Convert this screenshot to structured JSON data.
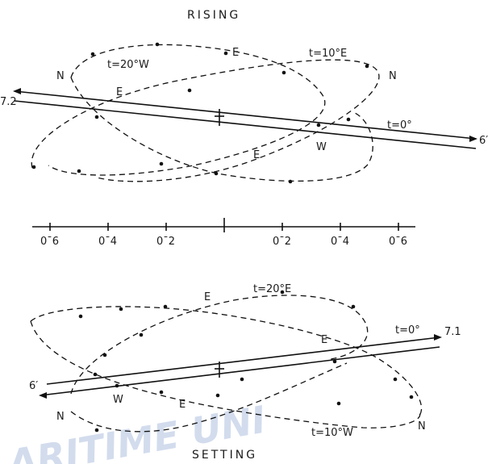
{
  "rising": {
    "title": "RISING",
    "start_label": "7.2",
    "end_label": "6′",
    "labels": {
      "t20w": "t=20°W",
      "t10e": "t=10°E",
      "t0": "t=0°",
      "n_left": "N",
      "n_right": "N",
      "e_top": "E",
      "e_left": "E",
      "e_bottom": "E",
      "w": "W"
    }
  },
  "scale": {
    "ticks": [
      "0ˉ6",
      "0ˉ4",
      "0ˉ2",
      "0ˉ2",
      "0ˉ4",
      "0ˉ6"
    ]
  },
  "setting": {
    "title": "SETTING",
    "start_label": "6′",
    "end_label": "7.1",
    "labels": {
      "t20e": "t=20°E",
      "t0": "t=0°",
      "t10w": "t=10°W",
      "n_left": "N",
      "n_right": "N",
      "e_top": "E",
      "e_right": "E",
      "e_bottom": "E",
      "w": "W"
    }
  },
  "watermark": "ARITIME UNI"
}
